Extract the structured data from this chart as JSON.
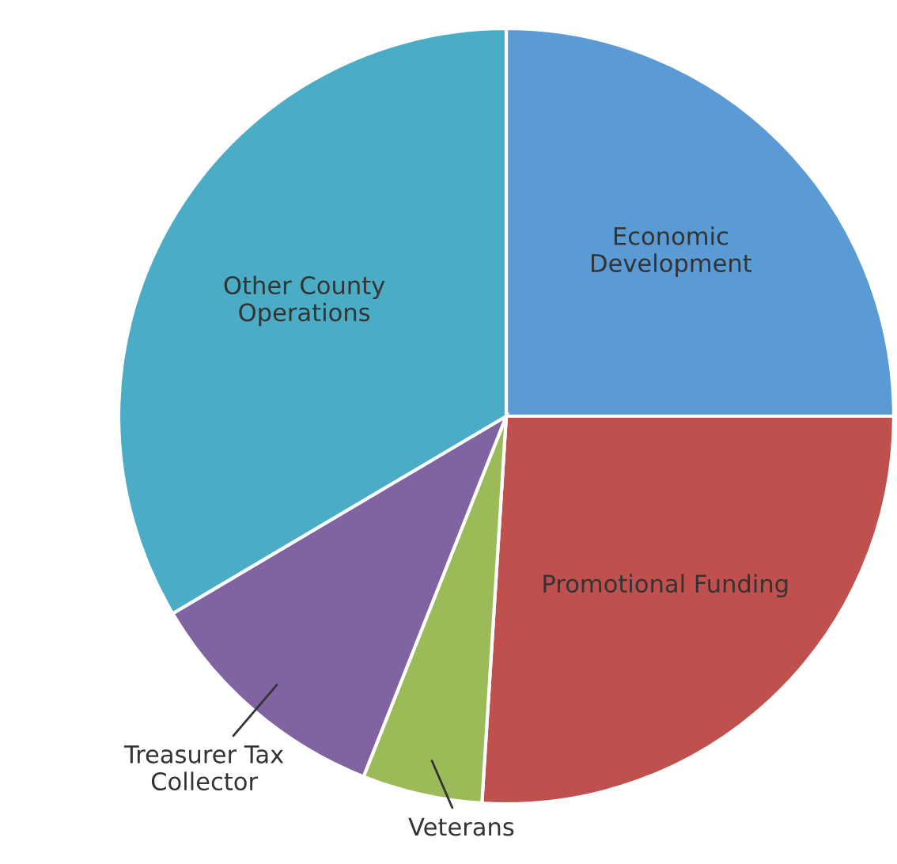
{
  "chart_data": {
    "type": "pie",
    "categories": [
      "Economic\nDevelopment",
      "Promotional Funding",
      "Veterans",
      "Treasurer Tax\nCollector",
      "Other County\nOperations"
    ],
    "values": [
      25,
      26,
      5,
      10.5,
      33.5
    ],
    "colors": [
      "#5b9bd5",
      "#c0504d",
      "#9bbb59",
      "#8064a2",
      "#4bacc6"
    ]
  }
}
